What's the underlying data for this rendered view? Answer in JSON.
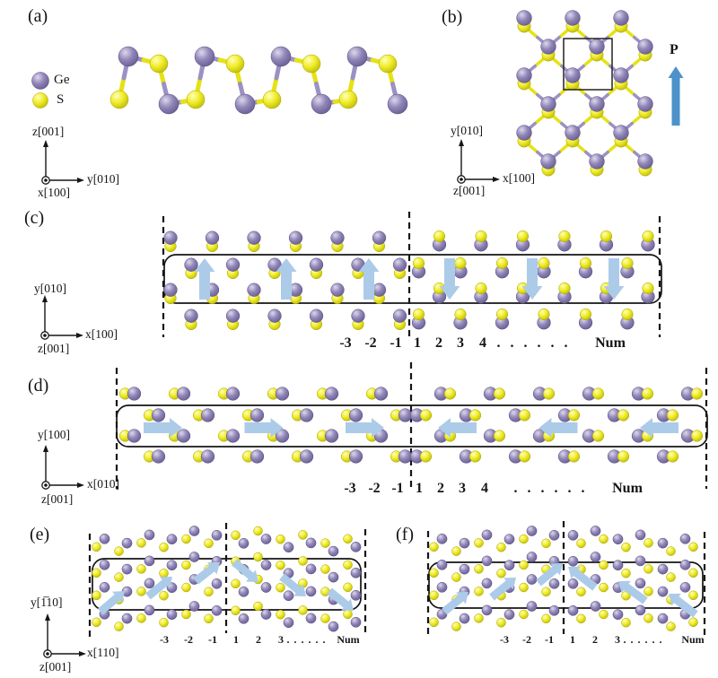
{
  "figure": {
    "description": "GeS monolayer structure and ferroelectric domain walls",
    "legend": {
      "ge": "Ge",
      "s": "S"
    }
  },
  "panel_a": {
    "label": "(a)",
    "legend": {
      "ge": "Ge",
      "s": "S"
    },
    "axes": {
      "up": "z[001]",
      "right": "y[010]",
      "out": "x[100]"
    }
  },
  "panel_b": {
    "label": "(b)",
    "p_label": "P",
    "axes": {
      "up": "y[010]",
      "right": "x[100]",
      "out": "z[001]"
    }
  },
  "panel_c": {
    "label": "(c)",
    "axes": {
      "up": "y[010]",
      "right": "x[100]",
      "out": "z[001]"
    },
    "numbers": [
      "-3",
      "-2",
      "-1",
      "1",
      "2",
      "3",
      "4"
    ],
    "dots": ". . . . . .",
    "num_label": "Num"
  },
  "panel_d": {
    "label": "(d)",
    "axes": {
      "up": "y[100]",
      "right": "x[010]",
      "out": "z[001]"
    },
    "numbers": [
      "-3",
      "-2",
      "-1",
      "1",
      "2",
      "3",
      "4"
    ],
    "dots": ". . . . . .",
    "num_label": "Num"
  },
  "panel_e": {
    "label": "(e)",
    "axes": {
      "up": "y[1̅10]",
      "right": "x[110]",
      "out": "z[001]"
    },
    "numbers": [
      "-3",
      "-2",
      "-1",
      "1",
      "2",
      "3"
    ],
    "dots": ". . . . . .",
    "num_label": "Num"
  },
  "panel_f": {
    "label": "(f)",
    "numbers": [
      "-3",
      "-2",
      "-1",
      "1",
      "2",
      "3"
    ],
    "dots": ". . . . . .",
    "num_label": "Num"
  },
  "colors": {
    "ge_mid": "#9186b8",
    "ge_light": "#ddd8ec",
    "ge_dark": "#5f5488",
    "s_mid": "#f0ec28",
    "s_light": "#ffffbb",
    "s_dark": "#b3b005",
    "bond_purple": "#9b91c3",
    "bond_yellow": "#e6e215",
    "domain_arrow": "#accbe9",
    "polarization_arrow": "#4d92cb",
    "line": "#161616"
  }
}
